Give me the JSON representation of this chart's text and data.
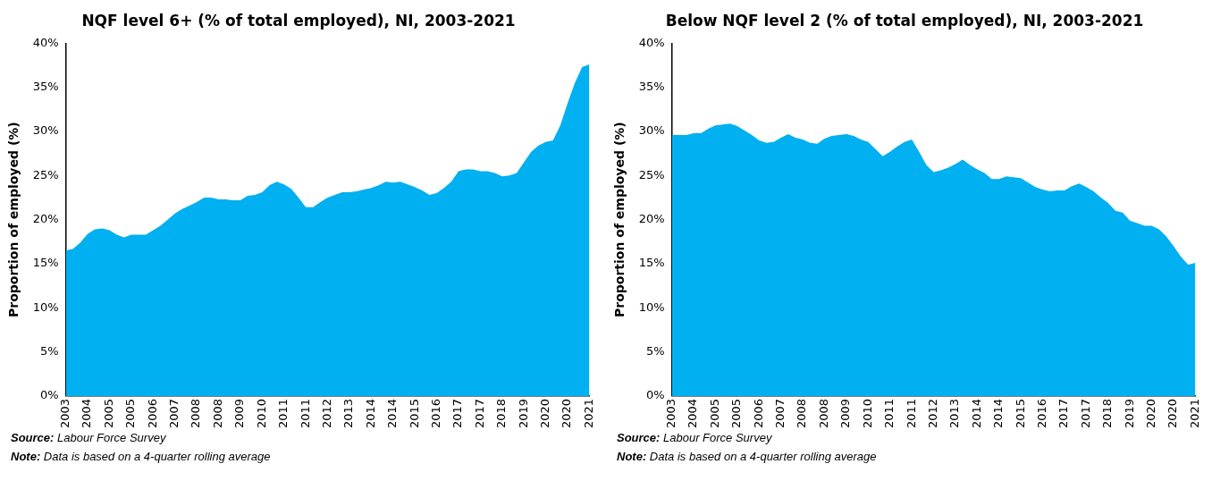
{
  "chart_data": [
    {
      "type": "area",
      "title": "NQF level 6+ (% of total employed), NI, 2003-2021",
      "ylabel": "Proportion of employed (%)",
      "categories": [
        "2003",
        null,
        null,
        "2004",
        null,
        null,
        "2005",
        null,
        null,
        "2005",
        null,
        null,
        "2006",
        null,
        null,
        "2007",
        null,
        null,
        "2008",
        null,
        null,
        "2008",
        null,
        null,
        "2009",
        null,
        null,
        "2010",
        null,
        null,
        "2011",
        null,
        null,
        "2011",
        null,
        null,
        "2012",
        null,
        null,
        "2013",
        null,
        null,
        "2014",
        null,
        null,
        "2014",
        null,
        null,
        "2015",
        null,
        null,
        "2016",
        null,
        null,
        "2017",
        null,
        null,
        "2017",
        null,
        null,
        "2018",
        null,
        null,
        "2019",
        null,
        null,
        "2020",
        null,
        null,
        "2020",
        null,
        null,
        "2021"
      ],
      "series": [
        {
          "color": "#00b0f0",
          "values": [
            16.5,
            16.7,
            17.4,
            18.4,
            18.9,
            19.0,
            18.8,
            18.3,
            18.0,
            18.3,
            18.3,
            18.3,
            18.8,
            19.3,
            20.0,
            20.7,
            21.2,
            21.6,
            22.0,
            22.5,
            22.5,
            22.3,
            22.3,
            22.2,
            22.2,
            22.7,
            22.8,
            23.1,
            23.9,
            24.3,
            24.0,
            23.5,
            22.5,
            21.4,
            21.4,
            22.0,
            22.5,
            22.8,
            23.1,
            23.1,
            23.2,
            23.4,
            23.6,
            23.9,
            24.3,
            24.2,
            24.3,
            24.0,
            23.7,
            23.3,
            22.8,
            23.0,
            23.6,
            24.3,
            25.5,
            25.7,
            25.7,
            25.5,
            25.5,
            25.3,
            24.9,
            25.0,
            25.3,
            26.5,
            27.7,
            28.4,
            28.8,
            29.0,
            30.7,
            33.2,
            35.5,
            37.3,
            37.6
          ]
        }
      ],
      "ylim": [
        0,
        40
      ],
      "yticks": [
        {
          "value": 0,
          "label": "0%"
        },
        {
          "value": 5,
          "label": "5%"
        },
        {
          "value": 10,
          "label": "10%"
        },
        {
          "value": 15,
          "label": "15%"
        },
        {
          "value": 20,
          "label": "20%"
        },
        {
          "value": 25,
          "label": "25%"
        },
        {
          "value": 30,
          "label": "30%"
        },
        {
          "value": 35,
          "label": "35%"
        },
        {
          "value": 40,
          "label": "40%"
        }
      ],
      "grid": false,
      "legend": false,
      "annotations": [
        "Source: Labour Force Survey",
        "Note: Data is based on a 4-quarter rolling average"
      ]
    },
    {
      "type": "area",
      "title": "Below NQF level 2 (% of total employed), NI, 2003-2021",
      "ylabel": "Proportion of employed (%)",
      "categories": [
        "2003",
        null,
        null,
        "2004",
        null,
        null,
        "2005",
        null,
        null,
        "2005",
        null,
        null,
        "2006",
        null,
        null,
        "2007",
        null,
        null,
        "2008",
        null,
        null,
        "2008",
        null,
        null,
        "2009",
        null,
        null,
        "2010",
        null,
        null,
        "2011",
        null,
        null,
        "2011",
        null,
        null,
        "2012",
        null,
        null,
        "2013",
        null,
        null,
        "2014",
        null,
        null,
        "2014",
        null,
        null,
        "2015",
        null,
        null,
        "2016",
        null,
        null,
        "2017",
        null,
        null,
        "2017",
        null,
        null,
        "2018",
        null,
        null,
        "2019",
        null,
        null,
        "2020",
        null,
        null,
        "2020",
        null,
        null,
        "2021"
      ],
      "series": [
        {
          "color": "#00b0f0",
          "values": [
            29.6,
            29.6,
            29.6,
            29.8,
            29.8,
            30.3,
            30.7,
            30.8,
            30.9,
            30.6,
            30.1,
            29.6,
            29.0,
            28.7,
            28.8,
            29.3,
            29.7,
            29.3,
            29.1,
            28.7,
            28.6,
            29.2,
            29.5,
            29.6,
            29.7,
            29.5,
            29.1,
            28.8,
            28.0,
            27.2,
            27.7,
            28.3,
            28.8,
            29.1,
            27.7,
            26.2,
            25.4,
            25.6,
            25.9,
            26.3,
            26.8,
            26.2,
            25.7,
            25.3,
            24.6,
            24.6,
            24.9,
            24.8,
            24.7,
            24.2,
            23.7,
            23.4,
            23.2,
            23.3,
            23.3,
            23.8,
            24.1,
            23.7,
            23.2,
            22.5,
            21.9,
            21.0,
            20.8,
            19.9,
            19.6,
            19.3,
            19.3,
            18.9,
            18.1,
            17.0,
            15.8,
            14.9,
            15.1
          ]
        }
      ],
      "ylim": [
        0,
        40
      ],
      "yticks": [
        {
          "value": 0,
          "label": "0%"
        },
        {
          "value": 5,
          "label": "5%"
        },
        {
          "value": 10,
          "label": "10%"
        },
        {
          "value": 15,
          "label": "15%"
        },
        {
          "value": 20,
          "label": "20%"
        },
        {
          "value": 25,
          "label": "25%"
        },
        {
          "value": 30,
          "label": "30%"
        },
        {
          "value": 35,
          "label": "35%"
        },
        {
          "value": 40,
          "label": "40%"
        }
      ],
      "grid": false,
      "legend": false,
      "annotations": [
        "Source: Labour Force Survey",
        "Note: Data is based on a 4-quarter rolling average"
      ]
    }
  ]
}
